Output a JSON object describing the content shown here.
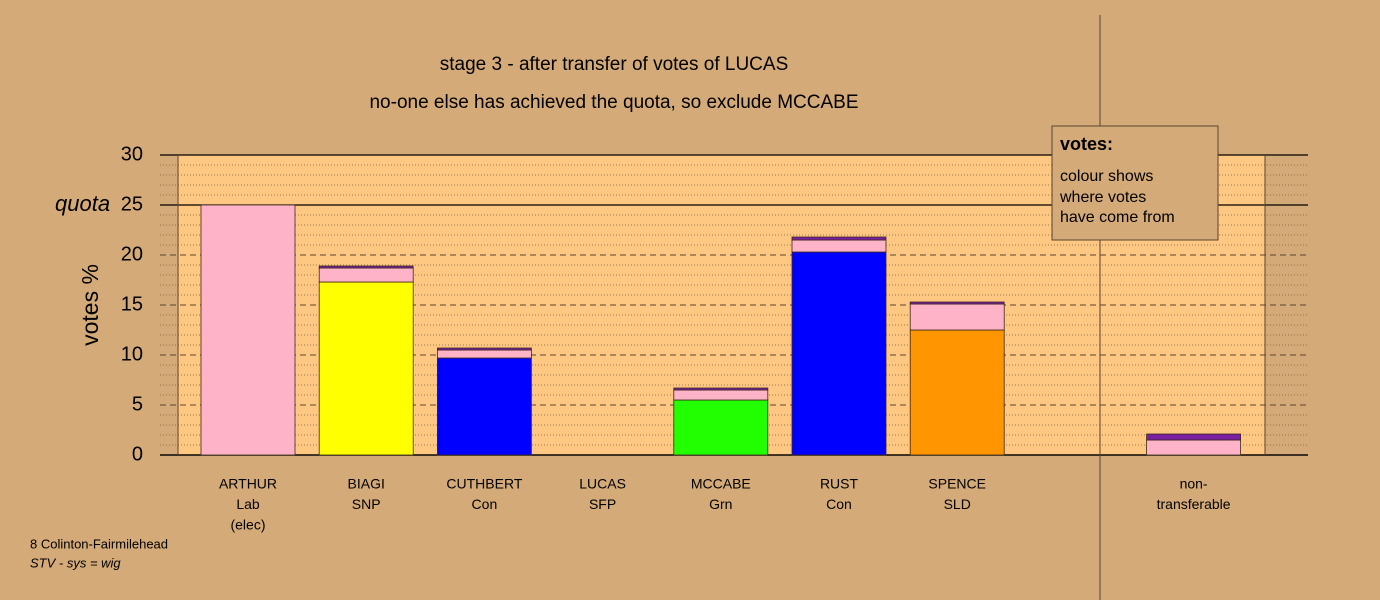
{
  "chart_data": {
    "type": "stacked-bar",
    "title": "stage 3 - after transfer of votes of LUCAS",
    "subtitle": "no-one else has achieved the quota, so exclude MCCABE",
    "y_label": "votes %",
    "quota": 25,
    "quota_label": "quota",
    "ylim": [
      0,
      30
    ],
    "yticks": [
      0,
      5,
      10,
      15,
      20,
      25,
      30
    ],
    "categories": [
      [
        "ARTHUR",
        "Lab",
        "(elec)"
      ],
      [
        "BIAGI",
        "SNP"
      ],
      [
        "CUTHBERT",
        "Con"
      ],
      [
        "LUCAS",
        "SFP"
      ],
      [
        "MCCABE",
        "Grn"
      ],
      [
        "RUST",
        "Con"
      ],
      [
        "SPENCE",
        "SLD"
      ],
      [
        "non-",
        "transferable"
      ]
    ],
    "series": [
      {
        "colors": [
          "#ffb3c8",
          "#ffff00",
          "#0000ff",
          "#7b1fa2",
          "#22ff00",
          "#0000ff",
          "#ff9500",
          "#ffb3c8"
        ],
        "values": [
          25,
          17.3,
          9.7,
          0,
          5.5,
          20.3,
          12.5,
          0
        ]
      },
      {
        "color": "#ffb3c8",
        "values": [
          0,
          1.4,
          0.8,
          0,
          1.0,
          1.2,
          2.6,
          1.5
        ]
      },
      {
        "color": "#7b1fa2",
        "values": [
          0,
          0.2,
          0.2,
          0,
          0.2,
          0.3,
          0.2,
          0.6
        ]
      }
    ],
    "legend": {
      "title": "votes:",
      "lines": [
        "colour shows",
        "where votes",
        "have come from"
      ]
    },
    "footer": [
      "8 Colinton-Fairmilehead",
      "STV - sys = wig"
    ]
  }
}
